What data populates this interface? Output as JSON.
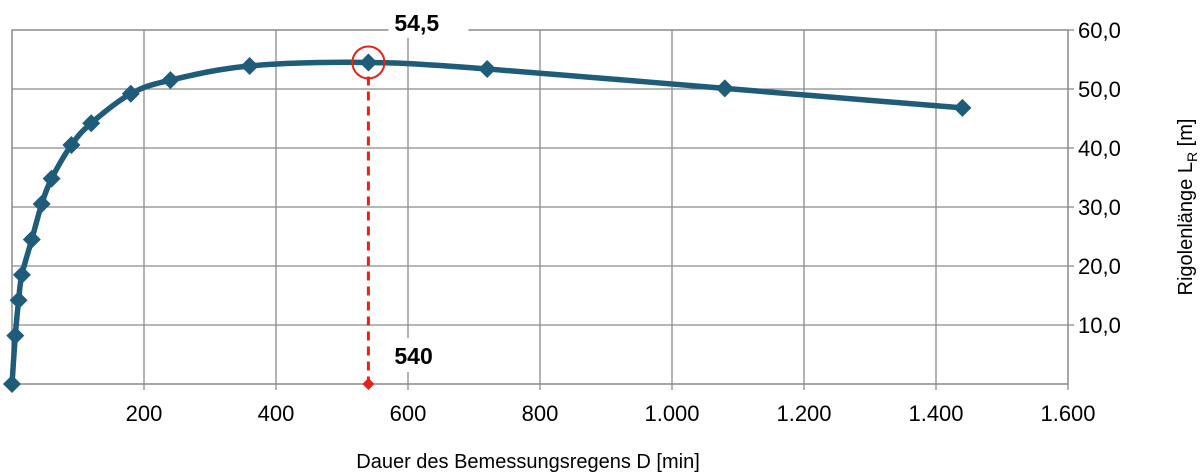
{
  "chart_data": {
    "type": "line",
    "title": "",
    "xlabel": "Dauer des Bemessungsregens  D [min]",
    "ylabel": {
      "text": "Rigolenlänge   L",
      "sub": "R",
      "unit": " [m]"
    },
    "xlim": [
      0,
      1600
    ],
    "ylim": [
      0,
      60
    ],
    "x_ticks": [
      {
        "value": 200,
        "label": "200"
      },
      {
        "value": 400,
        "label": "400"
      },
      {
        "value": 600,
        "label": "600"
      },
      {
        "value": 800,
        "label": "800"
      },
      {
        "value": 1000,
        "label": "1.000"
      },
      {
        "value": 1200,
        "label": "1.200"
      },
      {
        "value": 1400,
        "label": "1.400"
      },
      {
        "value": 1600,
        "label": "1.600"
      }
    ],
    "y_ticks": [
      {
        "value": 10,
        "label": "10,0"
      },
      {
        "value": 20,
        "label": "20,0"
      },
      {
        "value": 30,
        "label": "30,0"
      },
      {
        "value": 40,
        "label": "40,0"
      },
      {
        "value": 50,
        "label": "50,0"
      },
      {
        "value": 60,
        "label": "60,0"
      }
    ],
    "grid": true,
    "legend": "none",
    "series": [
      {
        "color": "#1f5c7a",
        "marker": "diamond",
        "points": [
          {
            "x": 0,
            "y": 0
          },
          {
            "x": 5,
            "y": 8.2
          },
          {
            "x": 10,
            "y": 14.2
          },
          {
            "x": 15,
            "y": 18.5
          },
          {
            "x": 30,
            "y": 24.5
          },
          {
            "x": 45,
            "y": 30.5
          },
          {
            "x": 60,
            "y": 34.8
          },
          {
            "x": 90,
            "y": 40.5
          },
          {
            "x": 120,
            "y": 44.2
          },
          {
            "x": 180,
            "y": 49.2
          },
          {
            "x": 240,
            "y": 51.5
          },
          {
            "x": 360,
            "y": 53.9
          },
          {
            "x": 540,
            "y": 54.5
          },
          {
            "x": 720,
            "y": 53.4
          },
          {
            "x": 1080,
            "y": 50.1
          },
          {
            "x": 1440,
            "y": 46.8
          }
        ]
      }
    ],
    "annotations": {
      "max_value_label": "54,5",
      "max_duration_label": "540",
      "max_point": {
        "x": 540,
        "y": 54.5
      },
      "highlight_color": "#e8221a"
    }
  }
}
